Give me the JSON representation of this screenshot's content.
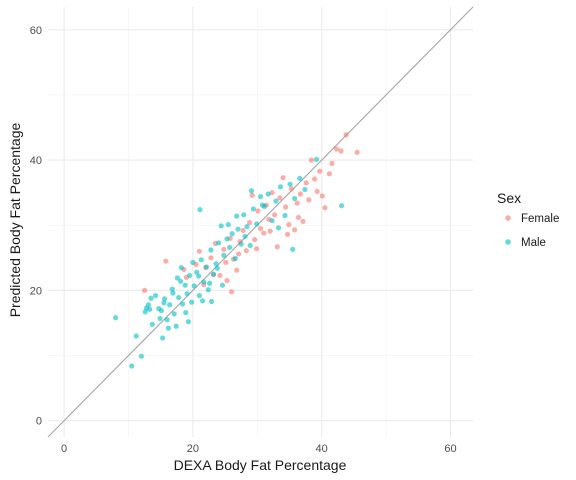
{
  "chart_data": {
    "type": "scatter",
    "xlabel": "DEXA Body Fat Percentage",
    "ylabel": "Predicted Body Fat Percentage",
    "xlim": [
      -2.5,
      63.5
    ],
    "ylim": [
      -2.5,
      63.5
    ],
    "x_ticks": [
      0,
      20,
      40,
      60
    ],
    "y_ticks": [
      0,
      20,
      40,
      60
    ],
    "grid": true,
    "reference_line": "y = x",
    "legend": {
      "title": "Sex",
      "placement": "right"
    },
    "series": [
      {
        "name": "Female",
        "color": "#F8766D",
        "points": [
          [
            12.5,
            20
          ],
          [
            15.8,
            24.5
          ],
          [
            19,
            22
          ],
          [
            20.5,
            24
          ],
          [
            21,
            26
          ],
          [
            22,
            23.5
          ],
          [
            22.8,
            25
          ],
          [
            23.5,
            27.2
          ],
          [
            24.2,
            22.3
          ],
          [
            24.8,
            26.3
          ],
          [
            25.3,
            21.5
          ],
          [
            25.8,
            28
          ],
          [
            26.3,
            24.8
          ],
          [
            26.8,
            23.1
          ],
          [
            27.3,
            27.5
          ],
          [
            27.8,
            29.2
          ],
          [
            28.3,
            26.1
          ],
          [
            28.8,
            30.4
          ],
          [
            29.2,
            34.6
          ],
          [
            29.6,
            27.8
          ],
          [
            30.1,
            32.2
          ],
          [
            30.5,
            29.5
          ],
          [
            31,
            28.8
          ],
          [
            31.4,
            33.1
          ],
          [
            31.8,
            30.9
          ],
          [
            32.3,
            35
          ],
          [
            32.7,
            31.6
          ],
          [
            33.1,
            26.7
          ],
          [
            33.5,
            34.2
          ],
          [
            34,
            37.3
          ],
          [
            34.4,
            32.8
          ],
          [
            34.9,
            30.1
          ],
          [
            35.3,
            35.6
          ],
          [
            35.8,
            29.3
          ],
          [
            36.2,
            33.4
          ],
          [
            36.7,
            34.8
          ],
          [
            37.1,
            30.6
          ],
          [
            37.6,
            36.5
          ],
          [
            38,
            33.9
          ],
          [
            38.4,
            40
          ],
          [
            38.9,
            37.1
          ],
          [
            39.3,
            35.2
          ],
          [
            39.7,
            38.3
          ],
          [
            40.1,
            34.5
          ],
          [
            40.5,
            32.7
          ],
          [
            41.2,
            37.9
          ],
          [
            41.6,
            39.5
          ],
          [
            42.3,
            41.7
          ],
          [
            43,
            41.4
          ],
          [
            43.8,
            43.9
          ],
          [
            45.5,
            41.2
          ],
          [
            23.2,
            22.4
          ],
          [
            25.1,
            24.3
          ],
          [
            27.1,
            25.6
          ],
          [
            29.9,
            26.4
          ],
          [
            32,
            29.1
          ],
          [
            34.7,
            28.6
          ],
          [
            36.4,
            31.2
          ],
          [
            18.6,
            23.2
          ],
          [
            21.7,
            20.9
          ],
          [
            26,
            19.8
          ]
        ]
      },
      {
        "name": "Male",
        "color": "#00BFC4",
        "points": [
          [
            8,
            15.8
          ],
          [
            10.5,
            8.4
          ],
          [
            11.2,
            13
          ],
          [
            12,
            9.9
          ],
          [
            12.6,
            16.7
          ],
          [
            13.1,
            17.8
          ],
          [
            13.7,
            14.8
          ],
          [
            14.2,
            19.2
          ],
          [
            14.7,
            17.2
          ],
          [
            15.1,
            16.9
          ],
          [
            15.6,
            18.7
          ],
          [
            16,
            15.5
          ],
          [
            16.4,
            17.8
          ],
          [
            16.8,
            20.2
          ],
          [
            17.1,
            16.4
          ],
          [
            17.4,
            14.5
          ],
          [
            17.8,
            18.9
          ],
          [
            18.1,
            21.4
          ],
          [
            18.4,
            17.9
          ],
          [
            18.8,
            20.8
          ],
          [
            19.1,
            19.5
          ],
          [
            19.5,
            22.3
          ],
          [
            19.8,
            18.2
          ],
          [
            20.2,
            20.7
          ],
          [
            20.6,
            22.8
          ],
          [
            21,
            19.2
          ],
          [
            21.3,
            24.7
          ],
          [
            21.7,
            21.3
          ],
          [
            22.1,
            23.6
          ],
          [
            22.4,
            20.1
          ],
          [
            22.8,
            26.2
          ],
          [
            23.2,
            22.5
          ],
          [
            23.6,
            24.1
          ],
          [
            24,
            27.3
          ],
          [
            24.4,
            29.9
          ],
          [
            24.8,
            25.4
          ],
          [
            25.3,
            27.9
          ],
          [
            25.7,
            26.6
          ],
          [
            26.1,
            28.7
          ],
          [
            26.6,
            24.9
          ],
          [
            27,
            29.4
          ],
          [
            27.5,
            27.1
          ],
          [
            27.9,
            31.6
          ],
          [
            28.4,
            29.8
          ],
          [
            28.9,
            26.9
          ],
          [
            29.4,
            32.5
          ],
          [
            29.9,
            30.2
          ],
          [
            30.5,
            34.4
          ],
          [
            31.1,
            32.9
          ],
          [
            31.7,
            34.8
          ],
          [
            32.3,
            30.7
          ],
          [
            32.9,
            33.7
          ],
          [
            33.6,
            35.9
          ],
          [
            34.3,
            31.5
          ],
          [
            35.1,
            36.3
          ],
          [
            35.8,
            34.1
          ],
          [
            36.6,
            37.2
          ],
          [
            37.4,
            35.5
          ],
          [
            39.2,
            40.1
          ],
          [
            43.1,
            33
          ],
          [
            13.3,
            17.1
          ],
          [
            14.9,
            15.7
          ],
          [
            15.5,
            18.1
          ],
          [
            16.2,
            14.2
          ],
          [
            17.6,
            21.9
          ],
          [
            18.9,
            16.6
          ],
          [
            20,
            24.3
          ],
          [
            20.9,
            22.2
          ],
          [
            21.5,
            18.4
          ],
          [
            22.6,
            21.1
          ],
          [
            23.8,
            23.4
          ],
          [
            24.6,
            20.8
          ],
          [
            25.5,
            30.1
          ],
          [
            26.8,
            31.4
          ],
          [
            28.1,
            28.3
          ],
          [
            29.1,
            35.3
          ],
          [
            30.8,
            33.1
          ],
          [
            33.3,
            29.6
          ],
          [
            35.5,
            26.3
          ],
          [
            12.8,
            17.3
          ],
          [
            15.3,
            12.7
          ],
          [
            16.9,
            19.6
          ],
          [
            18.2,
            23.5
          ],
          [
            19.3,
            15.2
          ],
          [
            21.1,
            32.4
          ],
          [
            22.9,
            18.3
          ],
          [
            13.5,
            18.8
          ]
        ]
      }
    ]
  }
}
